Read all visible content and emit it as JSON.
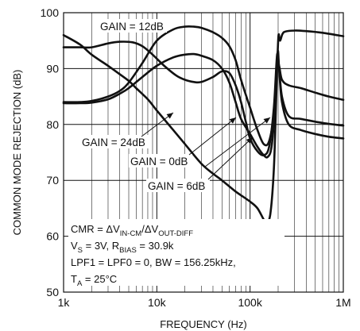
{
  "chart_data": {
    "type": "line",
    "x_scale": "log",
    "xlim": [
      1000,
      1000000
    ],
    "ylim": [
      50,
      100
    ],
    "grid": true,
    "xlabel": "FREQUENCY (Hz)",
    "ylabel": "COMMON MODE REJECTION (dB)",
    "x_ticks": [
      {
        "value": 1000,
        "label": "1k"
      },
      {
        "value": 10000,
        "label": "10k"
      },
      {
        "value": 100000,
        "label": "100k"
      },
      {
        "value": 1000000,
        "label": "1M"
      }
    ],
    "y_ticks": [
      {
        "value": 50,
        "label": "50"
      },
      {
        "value": 60,
        "label": "60"
      },
      {
        "value": 70,
        "label": "70"
      },
      {
        "value": 80,
        "label": "80"
      },
      {
        "value": 90,
        "label": "90"
      },
      {
        "value": 100,
        "label": "100"
      }
    ],
    "series": [
      {
        "name": "GAIN = 12dB",
        "points": [
          [
            1000,
            93.8
          ],
          [
            1500,
            93.8
          ],
          [
            2000,
            93.8
          ],
          [
            3000,
            94.5
          ],
          [
            4000,
            94.8
          ],
          [
            5500,
            94.7
          ],
          [
            7000,
            94
          ],
          [
            9000,
            92.5
          ],
          [
            12000,
            90.5
          ],
          [
            16000,
            88.8
          ],
          [
            20000,
            88
          ],
          [
            25000,
            87.6
          ],
          [
            30000,
            87.6
          ],
          [
            40000,
            88.5
          ],
          [
            50000,
            89.5
          ],
          [
            60000,
            89.2
          ],
          [
            70000,
            87
          ],
          [
            80000,
            84
          ],
          [
            90000,
            80.5
          ],
          [
            100000,
            77.5
          ],
          [
            120000,
            75.2
          ],
          [
            140000,
            74.5
          ],
          [
            160000,
            76
          ],
          [
            180000,
            83
          ],
          [
            195000,
            92.5
          ],
          [
            205000,
            90
          ],
          [
            220000,
            85
          ],
          [
            260000,
            81.5
          ],
          [
            350000,
            81
          ],
          [
            500000,
            80.5
          ],
          [
            700000,
            80.1
          ],
          [
            1000000,
            79.8
          ]
        ]
      },
      {
        "name": "GAIN = 24dB",
        "points": [
          [
            1000,
            96
          ],
          [
            1500,
            94.3
          ],
          [
            2000,
            92.5
          ],
          [
            3000,
            90.5
          ],
          [
            4000,
            89
          ],
          [
            5000,
            87.8
          ],
          [
            6000,
            86.5
          ],
          [
            8000,
            84.5
          ],
          [
            10000,
            82.5
          ],
          [
            15000,
            79
          ],
          [
            20000,
            76.5
          ],
          [
            30000,
            73
          ],
          [
            40000,
            71.2
          ],
          [
            50000,
            70
          ],
          [
            70000,
            68
          ],
          [
            100000,
            66.2
          ],
          [
            120000,
            65
          ],
          [
            140000,
            63
          ],
          [
            150000,
            62.4
          ],
          [
            165000,
            64
          ],
          [
            180000,
            72
          ],
          [
            190000,
            84
          ],
          [
            198000,
            93
          ],
          [
            205000,
            90
          ],
          [
            220000,
            84
          ],
          [
            260000,
            80
          ],
          [
            350000,
            79
          ],
          [
            500000,
            78.3
          ],
          [
            700000,
            77.8
          ],
          [
            1000000,
            77.5
          ]
        ]
      },
      {
        "name": "GAIN = 0dB",
        "points": [
          [
            1000,
            84
          ],
          [
            1500,
            84
          ],
          [
            2000,
            84.2
          ],
          [
            3000,
            85
          ],
          [
            4000,
            86
          ],
          [
            5000,
            87.5
          ],
          [
            7000,
            91
          ],
          [
            10000,
            95
          ],
          [
            15000,
            97
          ],
          [
            20000,
            97.5
          ],
          [
            25000,
            97.5
          ],
          [
            30000,
            97.3
          ],
          [
            40000,
            96.5
          ],
          [
            50000,
            95.5
          ],
          [
            60000,
            94
          ],
          [
            70000,
            91.5
          ],
          [
            80000,
            88
          ],
          [
            100000,
            83
          ],
          [
            120000,
            79
          ],
          [
            140000,
            76.5
          ],
          [
            160000,
            77
          ],
          [
            180000,
            82
          ],
          [
            195000,
            91
          ],
          [
            202000,
            96
          ],
          [
            210000,
            95
          ],
          [
            230000,
            96.5
          ],
          [
            300000,
            96.8
          ],
          [
            400000,
            96.7
          ],
          [
            600000,
            96.4
          ],
          [
            1000000,
            95.8
          ]
        ]
      },
      {
        "name": "GAIN = 6dB",
        "points": [
          [
            1000,
            83.8
          ],
          [
            1500,
            83.8
          ],
          [
            2000,
            83.9
          ],
          [
            3000,
            84.5
          ],
          [
            4000,
            85.5
          ],
          [
            5000,
            86.5
          ],
          [
            7000,
            88.5
          ],
          [
            10000,
            90.5
          ],
          [
            15000,
            92
          ],
          [
            20000,
            92.5
          ],
          [
            25000,
            92.6
          ],
          [
            30000,
            92.3
          ],
          [
            40000,
            91.5
          ],
          [
            50000,
            90
          ],
          [
            60000,
            87.5
          ],
          [
            70000,
            84
          ],
          [
            80000,
            81
          ],
          [
            100000,
            78.3
          ],
          [
            120000,
            76
          ],
          [
            140000,
            74.5
          ],
          [
            155000,
            74.2
          ],
          [
            170000,
            76
          ],
          [
            185000,
            83
          ],
          [
            195000,
            91
          ],
          [
            205000,
            90.5
          ],
          [
            220000,
            88
          ],
          [
            260000,
            87
          ],
          [
            350000,
            86.5
          ],
          [
            500000,
            85.7
          ],
          [
            700000,
            85
          ],
          [
            1000000,
            84.4
          ]
        ]
      }
    ],
    "annotations": [
      {
        "text": "GAIN = 12dB",
        "series": "GAIN = 12dB"
      },
      {
        "text": "GAIN = 24dB",
        "series": "GAIN = 24dB"
      },
      {
        "text": "GAIN = 0dB",
        "series": "GAIN = 0dB"
      },
      {
        "text": "GAIN = 6dB",
        "series": "GAIN = 6dB"
      }
    ],
    "conditions": {
      "line1_pre": "CMR = ΔV",
      "line1_sub1": "IN-CM",
      "line1_mid": "/ΔV",
      "line1_sub2": "OUT-DIFF",
      "line2_pre": "V",
      "line2_sub1": "S",
      "line2_mid": " = 3V, R",
      "line2_sub2": "BIAS",
      "line2_post": " = 30.9k",
      "line3": "LPF1 = LPF0 = 0, BW = 156.25kHz,",
      "line4_pre": "T",
      "line4_sub": "A",
      "line4_post": " = 25°C"
    }
  }
}
